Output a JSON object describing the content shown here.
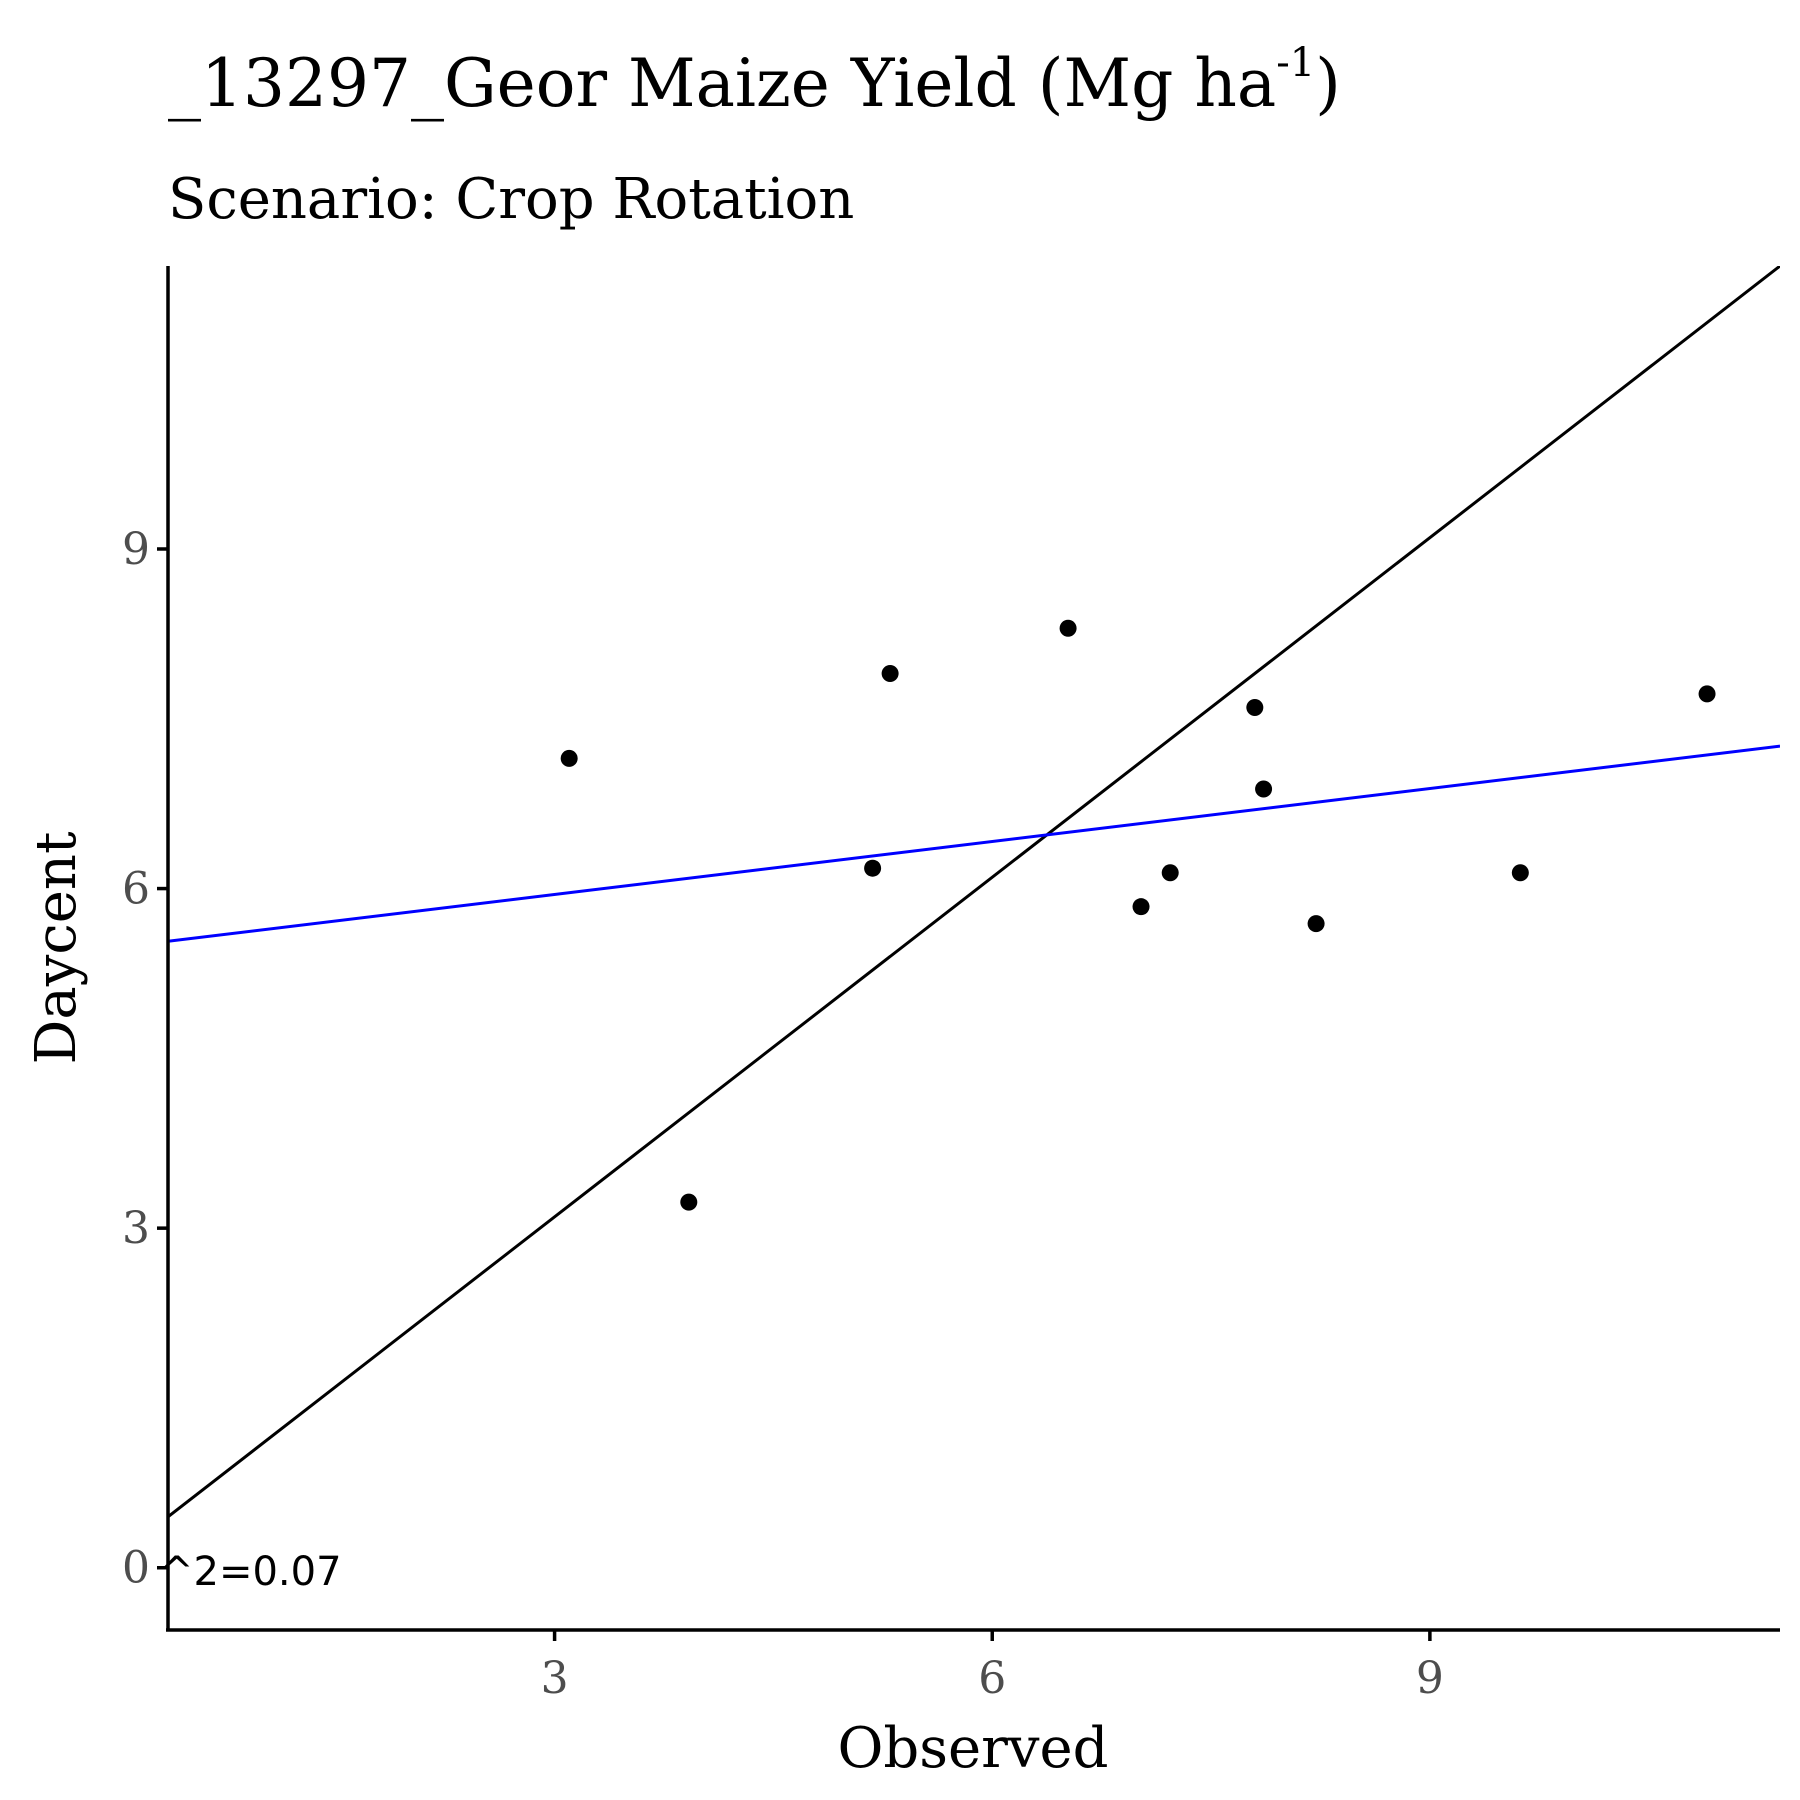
{
  "chart_data": {
    "type": "scatter",
    "title_main": "_13297_Geor Maize Yield (Mg ha",
    "title_sup": "-1",
    "title_close": ")",
    "subtitle": "Scenario: Crop Rotation",
    "xlabel": "Observed",
    "ylabel": "Daycent",
    "xlim": [
      0.35,
      11.4
    ],
    "ylim": [
      -0.55,
      11.5
    ],
    "xticks": [
      3,
      6,
      9
    ],
    "yticks": [
      0,
      3,
      6,
      9
    ],
    "points": [
      {
        "x": 3.1,
        "y": 7.15
      },
      {
        "x": 3.92,
        "y": 3.23
      },
      {
        "x": 5.18,
        "y": 6.18
      },
      {
        "x": 5.3,
        "y": 7.9
      },
      {
        "x": 6.52,
        "y": 8.3
      },
      {
        "x": 7.02,
        "y": 5.84
      },
      {
        "x": 7.22,
        "y": 6.14
      },
      {
        "x": 7.8,
        "y": 7.6
      },
      {
        "x": 7.86,
        "y": 6.88
      },
      {
        "x": 8.22,
        "y": 5.69
      },
      {
        "x": 9.62,
        "y": 6.14
      },
      {
        "x": 10.9,
        "y": 7.72
      }
    ],
    "reference_line": {
      "slope": 1.0,
      "intercept": 0.1,
      "color": "#000000"
    },
    "regression_line": {
      "slope": 0.156,
      "intercept": 5.48,
      "color": "#0000ff"
    },
    "annotation": "^2=0.07",
    "point_color": "#000000",
    "grid": false
  }
}
